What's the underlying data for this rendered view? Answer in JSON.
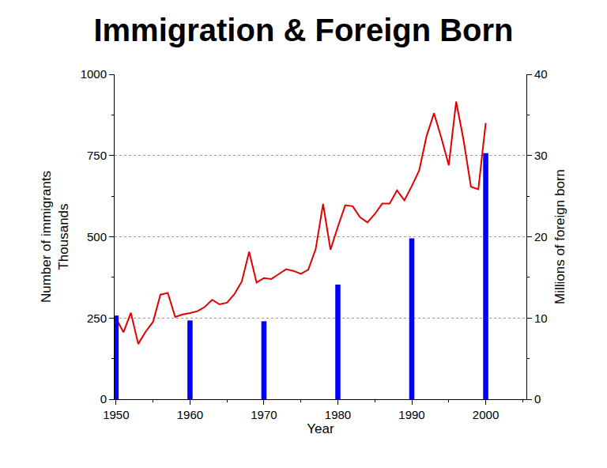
{
  "chart_data": {
    "type": "line",
    "title": "Immigration & Foreign Born",
    "xlabel": "Year",
    "ylabel": [
      "Number of immigrants",
      "Thousands"
    ],
    "y2label": "Millions of foreign born",
    "x": [
      1950,
      1951,
      1952,
      1953,
      1954,
      1955,
      1956,
      1957,
      1958,
      1959,
      1960,
      1961,
      1962,
      1963,
      1964,
      1965,
      1966,
      1967,
      1968,
      1969,
      1970,
      1971,
      1972,
      1973,
      1974,
      1975,
      1976,
      1977,
      1978,
      1979,
      1980,
      1981,
      1982,
      1983,
      1984,
      1985,
      1986,
      1987,
      1988,
      1989,
      1990,
      1991,
      1992,
      1993,
      1994,
      1995,
      1996,
      1997,
      1998,
      1999,
      2000
    ],
    "series": [
      {
        "name": "Number of immigrants",
        "type": "line",
        "color": "#e00000",
        "axis": "y",
        "values": [
          249,
          206,
          266,
          170,
          208,
          238,
          322,
          327,
          253,
          261,
          265,
          271,
          284,
          306,
          292,
          297,
          323,
          362,
          454,
          359,
          373,
          370,
          385,
          400,
          395,
          386,
          399,
          462,
          601,
          460,
          531,
          597,
          594,
          560,
          544,
          570,
          602,
          602,
          643,
          612,
          656,
          704,
          810,
          880,
          804,
          720,
          916,
          798,
          654,
          646,
          850
        ]
      },
      {
        "name": "Millions of foreign born",
        "type": "bar",
        "color": "#0000ff",
        "axis": "y2",
        "values": [
          10.3,
          null,
          null,
          null,
          null,
          null,
          null,
          null,
          null,
          null,
          9.7,
          null,
          null,
          null,
          null,
          null,
          null,
          null,
          null,
          null,
          9.6,
          null,
          null,
          null,
          null,
          null,
          null,
          null,
          null,
          null,
          14.1,
          null,
          null,
          null,
          null,
          null,
          null,
          null,
          null,
          null,
          19.8,
          null,
          null,
          null,
          null,
          null,
          null,
          null,
          null,
          null,
          30.3
        ]
      }
    ],
    "xlim": [
      1949.8,
      2005.5
    ],
    "xticks": [
      1950,
      1960,
      1970,
      1980,
      1990,
      2000
    ],
    "ylim": [
      0,
      1000
    ],
    "yticks": [
      0,
      250,
      500,
      750,
      1000
    ],
    "y2lim": [
      0,
      40
    ],
    "y2ticks": [
      0,
      10,
      20,
      30,
      40
    ],
    "grid": true
  }
}
